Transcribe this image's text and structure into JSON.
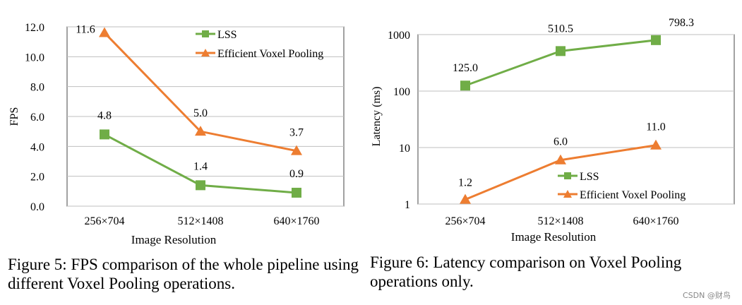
{
  "chart_data": [
    {
      "type": "line",
      "scale": "linear",
      "ylabel": "FPS",
      "xlabel": "Image Resolution",
      "categories": [
        "256×704",
        "512×1408",
        "640×1760"
      ],
      "ylim": [
        0,
        12
      ],
      "yticks": [
        0,
        2,
        4,
        6,
        8,
        10,
        12
      ],
      "ytick_labels": [
        "0.0",
        "2.0",
        "4.0",
        "6.0",
        "8.0",
        "10.0",
        "12.0"
      ],
      "grid": true,
      "legend_position": "top-right",
      "series": [
        {
          "name": "LSS",
          "marker": "square",
          "color": "#70ad47",
          "values": [
            4.8,
            1.4,
            0.9
          ],
          "labels": [
            "4.8",
            "1.4",
            "0.9"
          ]
        },
        {
          "name": "Efficient Voxel Pooling",
          "marker": "triangle",
          "color": "#ed7d31",
          "values": [
            11.6,
            5.0,
            3.7
          ],
          "labels": [
            "11.6",
            "5.0",
            "3.7"
          ]
        }
      ]
    },
    {
      "type": "line",
      "scale": "log",
      "ylabel": "Latency (ms)",
      "xlabel": "Image Resolution",
      "categories": [
        "256×704",
        "512×1408",
        "640×1760"
      ],
      "ylim": [
        1,
        1000
      ],
      "yticks": [
        1,
        10,
        100,
        1000
      ],
      "ytick_labels": [
        "1",
        "10",
        "100",
        "1000"
      ],
      "grid": true,
      "legend_position": "bottom-right",
      "series": [
        {
          "name": "LSS",
          "marker": "square",
          "color": "#70ad47",
          "values": [
            125.0,
            510.5,
            798.3
          ],
          "labels": [
            "125.0",
            "510.5",
            "798.3"
          ]
        },
        {
          "name": "Efficient Voxel Pooling",
          "marker": "triangle",
          "color": "#ed7d31",
          "values": [
            1.2,
            6.0,
            11.0
          ],
          "labels": [
            "1.2",
            "6.0",
            "11.0"
          ]
        }
      ]
    }
  ],
  "captions": {
    "figure5": "Figure 5: FPS comparison of the whole pipeline using different Voxel Pooling operations.",
    "figure6": "Figure 6: Latency comparison on Voxel Pooling operations only."
  },
  "watermark": "CSDN @财鸟"
}
